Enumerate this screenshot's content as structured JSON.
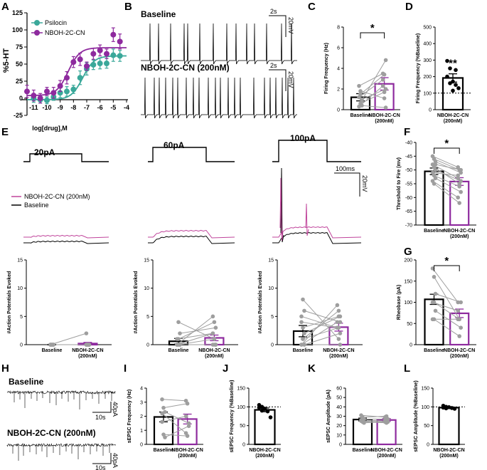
{
  "colors": {
    "teal": "#3aa89a",
    "purple": "#8e2a9e",
    "black": "#000000",
    "gray": "#9e9e9e",
    "pink": "#c0449b"
  },
  "panels": {
    "A": "A",
    "B": "B",
    "C": "C",
    "D": "D",
    "E": "E",
    "F": "F",
    "G": "G",
    "H": "H",
    "I": "I",
    "J": "J",
    "K": "K",
    "L": "L"
  },
  "chart_data": [
    {
      "id": "A",
      "type": "scatter",
      "ylabel": "%5-HT",
      "xlabel": "log[drug],M",
      "xticks": [
        "-11",
        "-10",
        "-9",
        "-8",
        "-7",
        "-6",
        "-5",
        "-4"
      ],
      "yticks": [
        "-25",
        "0",
        "25",
        "50",
        "75",
        "100",
        "125"
      ],
      "xlim": [
        -11.5,
        -4
      ],
      "ylim": [
        -25,
        125
      ],
      "legend": [
        "Psilocin",
        "NBOH-2C-CN"
      ],
      "series": [
        {
          "name": "Psilocin",
          "x": [
            -11,
            -10.5,
            -10,
            -9.5,
            -9,
            -8.5,
            -8,
            -7.5,
            -7,
            -6.5,
            -6,
            -5.5,
            -5,
            -4.5
          ],
          "y": [
            0,
            -2,
            -3,
            2,
            8,
            10,
            13,
            30,
            43,
            49,
            51,
            51,
            63,
            62
          ],
          "err": [
            6,
            5,
            5,
            5,
            7,
            7,
            6,
            10,
            9,
            7,
            8,
            7,
            9,
            8
          ]
        },
        {
          "name": "NBOH-2C-CN",
          "x": [
            -11.5,
            -11,
            -10.5,
            -10,
            -9.5,
            -9,
            -8.5,
            -8,
            -7.5,
            -7,
            -6.5,
            -6,
            -5.5,
            -5,
            -4.5
          ],
          "y": [
            10,
            4,
            0,
            10,
            8,
            18,
            30,
            53,
            57,
            47,
            65,
            70,
            65,
            93,
            83
          ],
          "err": [
            9,
            8,
            7,
            6,
            8,
            8,
            9,
            8,
            9,
            6,
            8,
            8,
            7,
            10,
            11
          ]
        }
      ],
      "fits": [
        {
          "name": "Psilocin",
          "bottom": -2,
          "top": 62,
          "logec50": -7.3
        },
        {
          "name": "NBOH-2C-CN",
          "bottom": 4,
          "top": 74,
          "logec50": -8.4
        }
      ]
    },
    {
      "id": "C",
      "type": "bar",
      "ylabel": "Firing Frequency (Hz)",
      "categories": [
        "Baseline",
        "NBOH-2C-CN (200nM)"
      ],
      "values": [
        1.2,
        2.5
      ],
      "errors": [
        0.35,
        0.6
      ],
      "ylim": [
        0,
        8
      ],
      "yticks": [
        "0",
        "2",
        "4",
        "6",
        "8"
      ],
      "pairs": [
        [
          0.3,
          2.3
        ],
        [
          0.6,
          1.7
        ],
        [
          0.9,
          4.8
        ],
        [
          1.2,
          2.9
        ],
        [
          1.5,
          3.4
        ],
        [
          0.4,
          0.2
        ],
        [
          2.3,
          3.5
        ],
        [
          1.8,
          1.1
        ],
        [
          1.0,
          2.0
        ]
      ],
      "significance": "*"
    },
    {
      "id": "D",
      "type": "bar",
      "ylabel": "Firing Frequency (%Baseline)",
      "categories": [
        "NBOH-2C-CN (200nM)"
      ],
      "values": [
        192
      ],
      "errors": [
        25
      ],
      "ylim": [
        0,
        500
      ],
      "yticks": [
        "0",
        "100",
        "200",
        "300",
        "400",
        "500"
      ],
      "points": [
        295,
        250,
        170,
        150,
        130,
        200,
        160,
        115,
        240
      ],
      "significance": "**"
    },
    {
      "id": "E",
      "type": "trace",
      "steps": [
        "20pA",
        "60pA",
        "100pA"
      ],
      "legend": [
        "NBOH-2C-CN (200nM)",
        "Baseline"
      ],
      "scale": {
        "time": "100ms",
        "voltage": "20mV"
      }
    },
    {
      "id": "E1",
      "type": "bar",
      "ylabel": "#Action Potentials Evoked",
      "categories": [
        "Baseline",
        "NBOH-2C-CN (200nM)"
      ],
      "values": [
        0.0,
        0.2
      ],
      "errors": [
        0.05,
        0.2
      ],
      "ylim": [
        0,
        15
      ],
      "yticks": [
        "0",
        "5",
        "10",
        "15"
      ],
      "pairs": [
        [
          0,
          2
        ],
        [
          0,
          0
        ],
        [
          0,
          0
        ],
        [
          0,
          0
        ],
        [
          0,
          0
        ],
        [
          0,
          0
        ],
        [
          0,
          0
        ],
        [
          0,
          0
        ],
        [
          0,
          0
        ],
        [
          0,
          0
        ],
        [
          0,
          0
        ],
        [
          0,
          0
        ]
      ]
    },
    {
      "id": "E2",
      "type": "bar",
      "ylabel": "#Action Potentials Evoked",
      "categories": [
        "Baseline",
        "NBOH-2C-CN (200nM)"
      ],
      "values": [
        0.6,
        1.2
      ],
      "errors": [
        0.5,
        0.5
      ],
      "ylim": [
        0,
        15
      ],
      "yticks": [
        "0",
        "5",
        "10",
        "15"
      ],
      "pairs": [
        [
          0,
          5
        ],
        [
          1,
          4
        ],
        [
          2,
          3
        ],
        [
          0,
          2
        ],
        [
          0,
          1
        ],
        [
          0,
          0
        ],
        [
          0,
          0
        ],
        [
          4,
          1
        ],
        [
          0,
          0
        ],
        [
          1,
          2
        ],
        [
          0,
          0
        ],
        [
          0,
          0
        ]
      ]
    },
    {
      "id": "E3",
      "type": "bar",
      "ylabel": "#Action Potentials Evoked",
      "categories": [
        "Baseline",
        "NBOH-2C-CN (200nM)"
      ],
      "values": [
        2.4,
        3.1
      ],
      "errors": [
        1.0,
        0.7
      ],
      "ylim": [
        0,
        15
      ],
      "yticks": [
        "0",
        "5",
        "10",
        "15"
      ],
      "pairs": [
        [
          0,
          7
        ],
        [
          1,
          6
        ],
        [
          2,
          5
        ],
        [
          0,
          4
        ],
        [
          1,
          3
        ],
        [
          0,
          2
        ],
        [
          4,
          3
        ],
        [
          3,
          5
        ],
        [
          6,
          4
        ],
        [
          5,
          3
        ],
        [
          8,
          1
        ],
        [
          0,
          0
        ]
      ]
    },
    {
      "id": "F",
      "type": "bar",
      "ylabel": "Threshold to Fire (mv)",
      "categories": [
        "Baseline",
        "NBOH-2C-CN (200nM)"
      ],
      "values": [
        -50.5,
        -54.2
      ],
      "errors": [
        1.2,
        1.4
      ],
      "ylim": [
        -70,
        -40
      ],
      "yticks": [
        "-70",
        "-65",
        "-60",
        "-55",
        "-50",
        "-45",
        "-40"
      ],
      "pairs": [
        [
          -45,
          -49
        ],
        [
          -46,
          -50
        ],
        [
          -47,
          -51
        ],
        [
          -48,
          -53
        ],
        [
          -49,
          -55
        ],
        [
          -50,
          -54
        ],
        [
          -51,
          -52
        ],
        [
          -52,
          -56
        ],
        [
          -53,
          -58
        ],
        [
          -54,
          -60
        ],
        [
          -55,
          -62
        ],
        [
          -48,
          -50
        ]
      ],
      "significance": "*"
    },
    {
      "id": "G",
      "type": "bar",
      "ylabel": "Rheobase (pA)",
      "categories": [
        "Baseline",
        "NBOH-2C-CN (200nM)"
      ],
      "values": [
        107,
        74
      ],
      "errors": [
        12,
        10
      ],
      "ylim": [
        0,
        200
      ],
      "yticks": [
        "0",
        "50",
        "100",
        "150",
        "200"
      ],
      "pairs": [
        [
          180,
          100
        ],
        [
          160,
          60
        ],
        [
          120,
          100
        ],
        [
          100,
          80
        ],
        [
          100,
          60
        ],
        [
          80,
          40
        ],
        [
          60,
          60
        ],
        [
          60,
          20
        ]
      ],
      "significance": "*"
    },
    {
      "id": "H",
      "type": "trace",
      "labels": [
        "Baseline",
        "NBOH-2C-CN (200nM)"
      ],
      "scale": {
        "time": "10s",
        "current": "40pA"
      }
    },
    {
      "id": "I",
      "type": "bar",
      "ylabel": "sEPSC Frequency (Hz)",
      "categories": [
        "Baseline",
        "NBOH-2C-CN (200nM)"
      ],
      "values": [
        1.95,
        1.8
      ],
      "errors": [
        0.35,
        0.35
      ],
      "ylim": [
        0,
        4
      ],
      "yticks": [
        "0",
        "1",
        "2",
        "3",
        "4"
      ],
      "pairs": [
        [
          3.2,
          3.1
        ],
        [
          2.6,
          2.9
        ],
        [
          2.3,
          1.5
        ],
        [
          1.6,
          2.0
        ],
        [
          0.7,
          0.6
        ],
        [
          0.5,
          1.3
        ],
        [
          2.2,
          0.8
        ]
      ]
    },
    {
      "id": "J",
      "type": "bar",
      "ylabel": "sEPSC Frequency (%Baseline)",
      "categories": [
        "NBOH-2C-CN (200nM)"
      ],
      "values": [
        92
      ],
      "errors": [
        5
      ],
      "ylim": [
        0,
        150
      ],
      "yticks": [
        "0",
        "50",
        "100",
        "150"
      ],
      "points": [
        105,
        100,
        95,
        88,
        72,
        98,
        90
      ]
    },
    {
      "id": "K",
      "type": "bar",
      "ylabel": "sEPSC Amplitude (pA)",
      "categories": [
        "Baseline",
        "NBOH-2C-CN (200nM)"
      ],
      "values": [
        26.5,
        26
      ],
      "errors": [
        1.5,
        1.5
      ],
      "ylim": [
        0,
        60
      ],
      "yticks": [
        "0",
        "10",
        "20",
        "30",
        "40",
        "50",
        "60"
      ],
      "pairs": [
        [
          31,
          29
        ],
        [
          29,
          30
        ],
        [
          27,
          27
        ],
        [
          25,
          24
        ],
        [
          24,
          23
        ],
        [
          23,
          24
        ],
        [
          26,
          25
        ]
      ]
    },
    {
      "id": "L",
      "type": "bar",
      "ylabel": "sEPSC Amplitude (%Baseline)",
      "categories": [
        "NBOH-2C-CN (200nM)"
      ],
      "values": [
        98
      ],
      "errors": [
        2
      ],
      "ylim": [
        0,
        150
      ],
      "yticks": [
        "0",
        "50",
        "100",
        "150"
      ],
      "points": [
        103,
        100,
        99,
        97,
        95,
        98,
        96
      ]
    }
  ],
  "labels": {
    "a_xlabel": "log[drug],M",
    "a_ylabel": "%5-HT",
    "b_baseline": "Baseline",
    "b_drug": "NBOH-2C-CN (200nM)",
    "b_time": "2s",
    "b_volt": "20mV",
    "e_steps": [
      "20pA",
      "60pA",
      "100pA"
    ],
    "e_legend_drug": "NBOH-2C-CN (200nM)",
    "e_legend_base": "Baseline",
    "e_time": "100ms",
    "e_volt": "20mV",
    "h_baseline": "Baseline",
    "h_drug": "NBOH-2C-CN (200nM)",
    "h_time": "10s",
    "h_curr": "40pA"
  }
}
